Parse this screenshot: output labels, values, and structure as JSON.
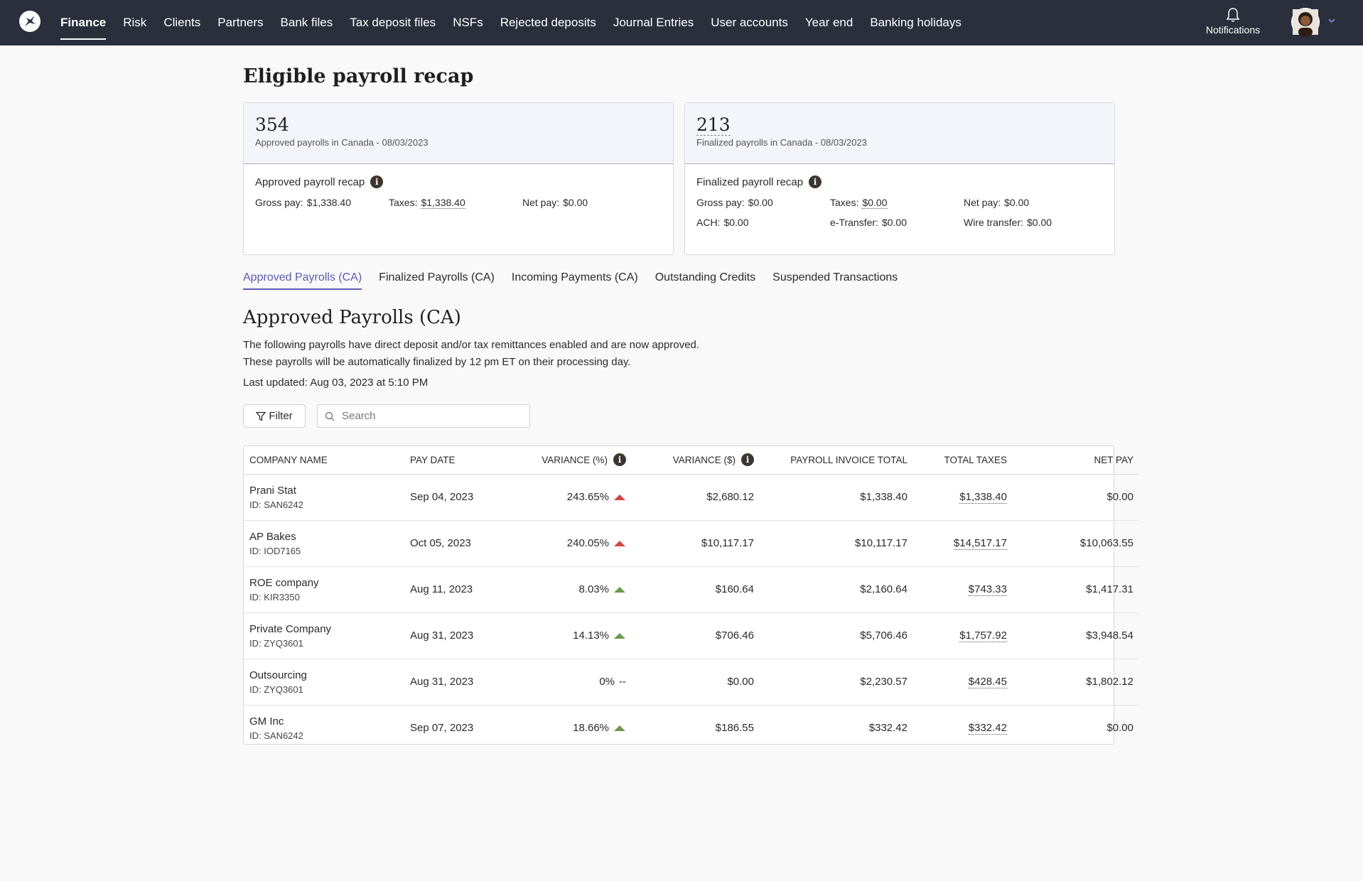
{
  "nav": {
    "items": [
      {
        "label": "Finance",
        "active": true
      },
      {
        "label": "Risk"
      },
      {
        "label": "Clients"
      },
      {
        "label": "Partners"
      },
      {
        "label": "Bank files"
      },
      {
        "label": "Tax deposit files"
      },
      {
        "label": "NSFs"
      },
      {
        "label": "Rejected deposits"
      },
      {
        "label": "Journal Entries"
      },
      {
        "label": "User accounts"
      },
      {
        "label": "Year end"
      },
      {
        "label": "Banking holidays"
      }
    ],
    "notifications_label": "Notifications"
  },
  "page_title": "Eligible payroll recap",
  "approved_card": {
    "count": "354",
    "subtitle": "Approved payrolls in Canada - 08/03/2023",
    "recap_title": "Approved payroll recap",
    "gross_label": "Gross pay:",
    "gross_value": "$1,338.40",
    "taxes_label": "Taxes:",
    "taxes_value": "$1,338.40",
    "net_label": "Net pay:",
    "net_value": "$0.00"
  },
  "finalized_card": {
    "count": "213",
    "subtitle": "Finalized payrolls in Canada - 08/03/2023",
    "recap_title": "Finalized payroll recap",
    "gross_label": "Gross pay:",
    "gross_value": "$0.00",
    "taxes_label": "Taxes:",
    "taxes_value": "$0.00",
    "net_label": "Net pay:",
    "net_value": "$0.00",
    "ach_label": "ACH:",
    "ach_value": "$0.00",
    "etransfer_label": "e-Transfer:",
    "etransfer_value": "$0.00",
    "wire_label": "Wire transfer:",
    "wire_value": "$0.00"
  },
  "tabs": [
    {
      "label": "Approved Payrolls (CA)",
      "active": true
    },
    {
      "label": "Finalized Payrolls (CA)"
    },
    {
      "label": "Incoming Payments (CA)"
    },
    {
      "label": "Outstanding Credits"
    },
    {
      "label": "Suspended Transactions"
    }
  ],
  "section": {
    "title": "Approved Payrolls (CA)",
    "desc_line1": "The following payrolls have direct deposit and/or tax remittances enabled and are now approved.",
    "desc_line2": "These payrolls will be automatically finalized by 12 pm ET on their processing day.",
    "last_updated": "Last updated: Aug 03, 2023 at 5:10 PM"
  },
  "toolbar": {
    "filter_label": "Filter",
    "search_placeholder": "Search"
  },
  "table": {
    "headers": {
      "company": "COMPANY NAME",
      "pay_date": "PAY DATE",
      "variance_pct": "VARIANCE (%)",
      "variance_amt": "VARIANCE ($)",
      "invoice_total": "PAYROLL INVOICE TOTAL",
      "total_taxes": "TOTAL TAXES",
      "net_pay": "NET PAY"
    },
    "rows": [
      {
        "company": "Prani Stat",
        "id": "ID: SAN6242",
        "pay_date": "Sep 04, 2023",
        "variance_pct": "243.65%",
        "trend": "up-red",
        "variance_amt": "$2,680.12",
        "invoice_total": "$1,338.40",
        "total_taxes": "$1,338.40",
        "net_pay": "$0.00"
      },
      {
        "company": "AP Bakes",
        "id": "ID: IOD7165",
        "pay_date": "Oct 05, 2023",
        "variance_pct": "240.05%",
        "trend": "up-red",
        "variance_amt": "$10,117.17",
        "invoice_total": "$10,117.17",
        "total_taxes": "$14,517.17",
        "net_pay": "$10,063.55"
      },
      {
        "company": "ROE company",
        "id": "ID: KIR3350",
        "pay_date": "Aug 11, 2023",
        "variance_pct": "8.03%",
        "trend": "up-green",
        "variance_amt": "$160.64",
        "invoice_total": "$2,160.64",
        "total_taxes": "$743.33",
        "net_pay": "$1,417.31"
      },
      {
        "company": "Private Company",
        "id": "ID: ZYQ3601",
        "pay_date": "Aug 31, 2023",
        "variance_pct": "14.13%",
        "trend": "up-green",
        "variance_amt": "$706.46",
        "invoice_total": "$5,706.46",
        "total_taxes": "$1,757.92",
        "net_pay": "$3,948.54"
      },
      {
        "company": "Outsourcing",
        "id": "ID: ZYQ3601",
        "pay_date": "Aug 31, 2023",
        "variance_pct": "0%",
        "trend": "--",
        "variance_amt": "$0.00",
        "invoice_total": "$2,230.57",
        "total_taxes": "$428.45",
        "net_pay": "$1,802.12"
      },
      {
        "company": "GM Inc",
        "id": "ID: SAN6242",
        "pay_date": "Sep 07, 2023",
        "variance_pct": "18.66%",
        "trend": "up-green",
        "variance_amt": "$186.55",
        "invoice_total": "$332.42",
        "total_taxes": "$332.42",
        "net_pay": "$0.00"
      }
    ]
  },
  "colors": {
    "nav_bg": "#2a2f3b",
    "accent": "#5a5ab0",
    "trend_red": "#d04646",
    "trend_green": "#6a9a4a"
  }
}
